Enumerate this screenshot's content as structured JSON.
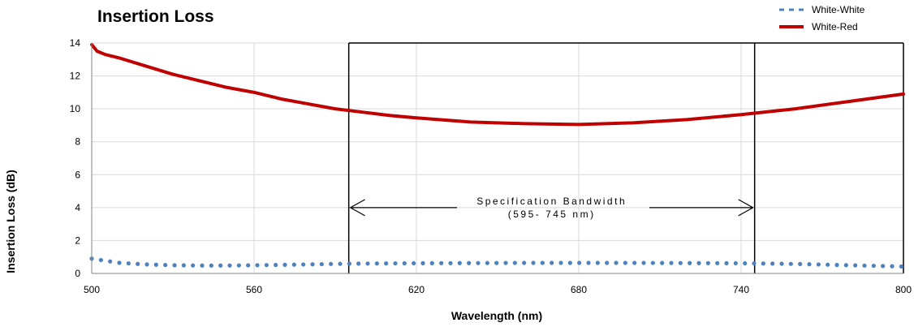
{
  "chart_data": {
    "type": "line",
    "title": "Insertion Loss",
    "xlabel": "Wavelength (nm)",
    "ylabel": "Insertion Loss (dB)",
    "xlim": [
      500,
      800
    ],
    "ylim": [
      0,
      14
    ],
    "xticks": [
      500,
      560,
      620,
      680,
      740,
      800
    ],
    "yticks": [
      0,
      2,
      4,
      6,
      8,
      10,
      12,
      14
    ],
    "grid": true,
    "legend": "top-right",
    "series": [
      {
        "name": "White-White",
        "style": "dotted",
        "color": "#4F81BD",
        "x": [
          500,
          510,
          520,
          530,
          540,
          550,
          560,
          570,
          580,
          590,
          600,
          620,
          640,
          660,
          680,
          700,
          720,
          740,
          760,
          780,
          800
        ],
        "y": [
          0.9,
          0.65,
          0.55,
          0.5,
          0.48,
          0.48,
          0.5,
          0.52,
          0.55,
          0.58,
          0.6,
          0.62,
          0.63,
          0.64,
          0.64,
          0.64,
          0.63,
          0.62,
          0.58,
          0.5,
          0.42
        ]
      },
      {
        "name": "White-Red",
        "style": "solid",
        "color": "#C00000",
        "x": [
          500,
          502,
          505,
          510,
          520,
          530,
          540,
          550,
          560,
          570,
          580,
          590,
          600,
          610,
          620,
          640,
          660,
          680,
          700,
          720,
          740,
          760,
          780,
          800
        ],
        "y": [
          13.9,
          13.5,
          13.3,
          13.1,
          12.6,
          12.1,
          11.7,
          11.3,
          11.0,
          10.6,
          10.3,
          10.0,
          9.8,
          9.6,
          9.45,
          9.2,
          9.1,
          9.05,
          9.15,
          9.35,
          9.65,
          10.0,
          10.45,
          10.9
        ]
      }
    ],
    "spec_band": {
      "x_start": 595,
      "x_end": 745,
      "label_line1": "Specification Bandwidth",
      "label_line2": "(595- 745 nm)"
    }
  }
}
